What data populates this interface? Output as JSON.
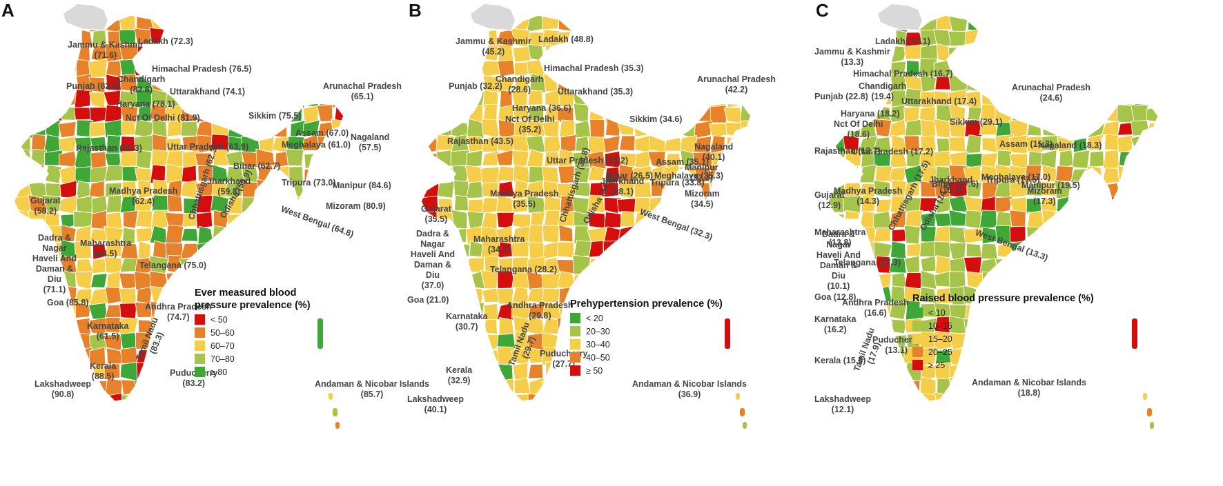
{
  "panels": [
    {
      "letter": "A",
      "legend_title_line1": "Ever measured blood",
      "legend_title_line2": "pressure prevalence (%)",
      "legend": [
        {
          "label": "< 50",
          "color": "#d40d0d"
        },
        {
          "label": "50–60",
          "color": "#e8822a"
        },
        {
          "label": "60–70",
          "color": "#f6cd48"
        },
        {
          "label": "70–80",
          "color": "#a7c44a"
        },
        {
          "label": "≥ 80",
          "color": "#3ea737"
        }
      ],
      "regions": [
        {
          "name": "Jammu & Kashmir",
          "value": "(71.6)"
        },
        {
          "name": "Ladakh",
          "value": "(72.3)"
        },
        {
          "name": "Himachal Pradesh",
          "value": "(76.5)"
        },
        {
          "name": "Punjab",
          "value": "(82.5)"
        },
        {
          "name": "Chandigarh",
          "value": "(82.6)"
        },
        {
          "name": "Uttarakhand",
          "value": "(74.1)"
        },
        {
          "name": "Haryana",
          "value": "(78.1)"
        },
        {
          "name": "Nct Of Delhi",
          "value": "(81.9)"
        },
        {
          "name": "Arunachal Pradesh",
          "value": "(65.1)"
        },
        {
          "name": "Sikkim",
          "value": "(75.5)"
        },
        {
          "name": "Nagaland",
          "value": "(57.5)"
        },
        {
          "name": "Assam",
          "value": "(67.0)"
        },
        {
          "name": "Meghalaya",
          "value": "(61.0)"
        },
        {
          "name": "Rajasthan",
          "value": "(58.3)"
        },
        {
          "name": "Uttar Pradesh",
          "value": "(63.9)"
        },
        {
          "name": "Bihar",
          "value": "(62.7)"
        },
        {
          "name": "Manipur",
          "value": "(84.6)"
        },
        {
          "name": "Tripura",
          "value": "(73.0)"
        },
        {
          "name": "Mizoram",
          "value": "(80.9)"
        },
        {
          "name": "Jharkhand",
          "value": "(59.8)"
        },
        {
          "name": "Madhya Pradesh",
          "value": "(62.4)"
        },
        {
          "name": "Gujarat",
          "value": "(58.2)"
        },
        {
          "name": "West Bengal",
          "value": "(64.8)"
        },
        {
          "name": "Chhattisgarh",
          "value": "(62.3)"
        },
        {
          "name": "Odisha",
          "value": "(55.9)"
        },
        {
          "name": "Maharashtra",
          "value": "(64.5)"
        },
        {
          "name": "Dadra & Nagar Haveli And Daman & Diu",
          "value": "(71.1)"
        },
        {
          "name": "Telangana",
          "value": "(75.0)"
        },
        {
          "name": "Goa",
          "value": "(85.8)"
        },
        {
          "name": "Andhra Pradesh",
          "value": "(74.7)"
        },
        {
          "name": "Karnataka",
          "value": "(61.5)"
        },
        {
          "name": "Tamil Nadu",
          "value": "(83.3)"
        },
        {
          "name": "Puducherry",
          "value": "(83.2)"
        },
        {
          "name": "Kerala",
          "value": "(88.5)"
        },
        {
          "name": "Lakshadweep",
          "value": "(90.8)"
        },
        {
          "name": "Andaman & Nicobar Islands",
          "value": "(85.7)"
        }
      ]
    },
    {
      "letter": "B",
      "legend_title_line1": "Prehypertension prevalence (%)",
      "legend_title_line2": "",
      "legend": [
        {
          "label": "< 20",
          "color": "#3ea737"
        },
        {
          "label": "20–30",
          "color": "#a7c44a"
        },
        {
          "label": "30–40",
          "color": "#f6cd48"
        },
        {
          "label": "40–50",
          "color": "#e8822a"
        },
        {
          "label": "≥ 50",
          "color": "#d40d0d"
        }
      ],
      "regions": [
        {
          "name": "Jammu & Kashmir",
          "value": "(45.2)"
        },
        {
          "name": "Ladakh",
          "value": "(48.8)"
        },
        {
          "name": "Himachal Pradesh",
          "value": "(35.3)"
        },
        {
          "name": "Punjab",
          "value": "(32.2)"
        },
        {
          "name": "Chandigarh",
          "value": "(28.6)"
        },
        {
          "name": "Uttarakhand",
          "value": "(35.3)"
        },
        {
          "name": "Haryana",
          "value": "(36.6)"
        },
        {
          "name": "Nct Of Delhi",
          "value": "(35.2)"
        },
        {
          "name": "Arunachal Pradesh",
          "value": "(42.2)"
        },
        {
          "name": "Sikkim",
          "value": "(34.6)"
        },
        {
          "name": "Rajasthan",
          "value": "(43.5)"
        },
        {
          "name": "Uttar Pradesh",
          "value": "(35.2)"
        },
        {
          "name": "Assam",
          "value": "(35.1)"
        },
        {
          "name": "Nagaland",
          "value": "(40.1)"
        },
        {
          "name": "Bihar",
          "value": "(26.5)"
        },
        {
          "name": "Meghalaya",
          "value": "(35.3)"
        },
        {
          "name": "Manipur",
          "value": "(37.3)"
        },
        {
          "name": "Tripura",
          "value": "(33.8)"
        },
        {
          "name": "Mizoram",
          "value": "(34.5)"
        },
        {
          "name": "Jharkhand",
          "value": "(28.1)"
        },
        {
          "name": "Gujarat",
          "value": "(35.5)"
        },
        {
          "name": "Madhya Pradesh",
          "value": "(35.5)"
        },
        {
          "name": "West Bengal",
          "value": "(32.3)"
        },
        {
          "name": "Chhattisgarh",
          "value": "(38.8)"
        },
        {
          "name": "Odisha",
          "value": "(34.4)"
        },
        {
          "name": "Dadra & Nagar Haveli And Daman & Diu",
          "value": "(37.0)"
        },
        {
          "name": "Maharashtra",
          "value": "(34.5)"
        },
        {
          "name": "Telangana",
          "value": "(28.2)"
        },
        {
          "name": "Goa",
          "value": "(21.0)"
        },
        {
          "name": "Andhra Pradesh",
          "value": "(29.8)"
        },
        {
          "name": "Karnataka",
          "value": "(30.7)"
        },
        {
          "name": "Puducherry",
          "value": "(27.7)"
        },
        {
          "name": "Tamil Nadu",
          "value": "(29.7)"
        },
        {
          "name": "Kerala",
          "value": "(32.9)"
        },
        {
          "name": "Lakshadweep",
          "value": "(40.1)"
        },
        {
          "name": "Andaman & Nicobar Islands",
          "value": "(36.9)"
        }
      ]
    },
    {
      "letter": "C",
      "legend_title_line1": "Raised blood pressure prevalence (%)",
      "legend_title_line2": "",
      "legend": [
        {
          "label": "< 10",
          "color": "#3ea737"
        },
        {
          "label": "10–15",
          "color": "#a7c44a"
        },
        {
          "label": "15–20",
          "color": "#f6cd48"
        },
        {
          "label": "20–25",
          "color": "#e8822a"
        },
        {
          "label": "≥ 25",
          "color": "#d40d0d"
        }
      ],
      "regions": [
        {
          "name": "Jammu & Kashmir",
          "value": "(13.3)"
        },
        {
          "name": "Ladakh",
          "value": "(18.1)"
        },
        {
          "name": "Himachal Pradesh",
          "value": "(16.7)"
        },
        {
          "name": "Punjab",
          "value": "(22.8)"
        },
        {
          "name": "Chandigarh",
          "value": "(19.4)"
        },
        {
          "name": "Uttarakhand",
          "value": "(17.4)"
        },
        {
          "name": "Haryana",
          "value": "(18.2)"
        },
        {
          "name": "Nct Of Delhi",
          "value": "(18.6)"
        },
        {
          "name": "Arunachal Pradesh",
          "value": "(24.6)"
        },
        {
          "name": "Sikkim",
          "value": "(29.1)"
        },
        {
          "name": "Rajasthan",
          "value": "(12.7)"
        },
        {
          "name": "Uttar Pradesh",
          "value": "(17.2)"
        },
        {
          "name": "Assam",
          "value": "(15.3)"
        },
        {
          "name": "Nagaland",
          "value": "(18.3)"
        },
        {
          "name": "Bihar",
          "value": "(17.6)"
        },
        {
          "name": "Meghalaya",
          "value": "(17.0)"
        },
        {
          "name": "Manipur",
          "value": "(19.5)"
        },
        {
          "name": "Tripura",
          "value": "(17.5)"
        },
        {
          "name": "Mizoram",
          "value": "(17.3)"
        },
        {
          "name": "Jharkhand",
          "value": "(15.2)"
        },
        {
          "name": "Gujarat",
          "value": "(12.9)"
        },
        {
          "name": "Madhya Pradesh",
          "value": "(14.3)"
        },
        {
          "name": "West Bengal",
          "value": "(13.3)"
        },
        {
          "name": "Chhattisgarh",
          "value": "(17.5)"
        },
        {
          "name": "Odisha",
          "value": "(14.2)"
        },
        {
          "name": "Dadra & Nagar Haveli And Daman & Diu",
          "value": "(10.1)"
        },
        {
          "name": "Maharashtra",
          "value": "(13.8)"
        },
        {
          "name": "Telangana",
          "value": "(17.3)"
        },
        {
          "name": "Goa",
          "value": "(12.8)"
        },
        {
          "name": "Andhra Pradesh",
          "value": "(16.6)"
        },
        {
          "name": "Karnataka",
          "value": "(16.2)"
        },
        {
          "name": "Puducherry",
          "value": "(13.1)"
        },
        {
          "name": "Tamil Nadu",
          "value": "(17.9)"
        },
        {
          "name": "Kerala",
          "value": "(15.5)"
        },
        {
          "name": "Lakshadweep",
          "value": "(12.1)"
        },
        {
          "name": "Andaman & Nicobar Islands",
          "value": "(18.8)"
        }
      ]
    }
  ]
}
